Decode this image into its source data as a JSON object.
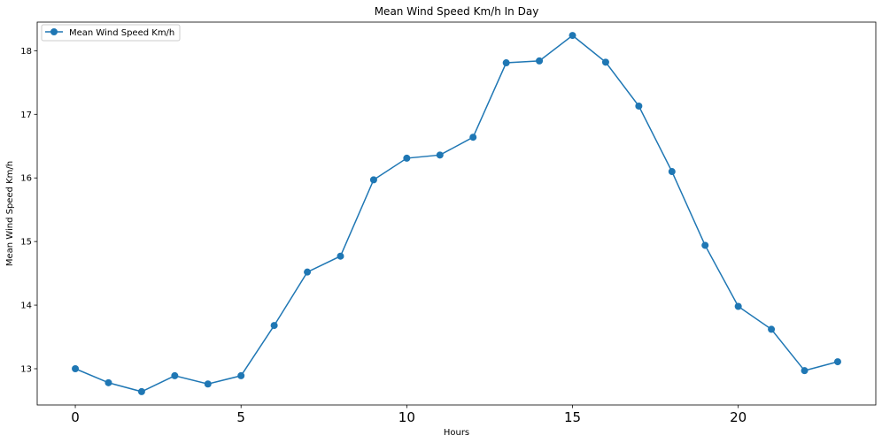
{
  "chart_data": {
    "type": "line",
    "title": "Mean Wind Speed Km/h In Day",
    "xlabel": "Hours",
    "ylabel": "Mean Wind Speed Km/h",
    "x": [
      0,
      1,
      2,
      3,
      4,
      5,
      6,
      7,
      8,
      9,
      10,
      11,
      12,
      13,
      14,
      15,
      16,
      17,
      18,
      19,
      20,
      21,
      22,
      23
    ],
    "series": [
      {
        "name": "Mean Wind Speed Km/h",
        "values": [
          13.0,
          12.78,
          12.64,
          12.89,
          12.76,
          12.89,
          13.68,
          14.52,
          14.77,
          15.97,
          16.31,
          16.36,
          16.64,
          17.81,
          17.84,
          18.24,
          17.82,
          17.13,
          16.1,
          14.94,
          13.98,
          13.62,
          12.97,
          13.11
        ]
      }
    ],
    "xlim": [
      -1.15,
      24.15
    ],
    "ylim": [
      12.43,
      18.45
    ],
    "xticks": [
      "0",
      "5",
      "10",
      "15",
      "20"
    ],
    "yticks": [
      "13",
      "14",
      "15",
      "16",
      "17",
      "18"
    ],
    "legend_position": "upper-left",
    "grid": false,
    "line_color": "#1f77b4"
  }
}
